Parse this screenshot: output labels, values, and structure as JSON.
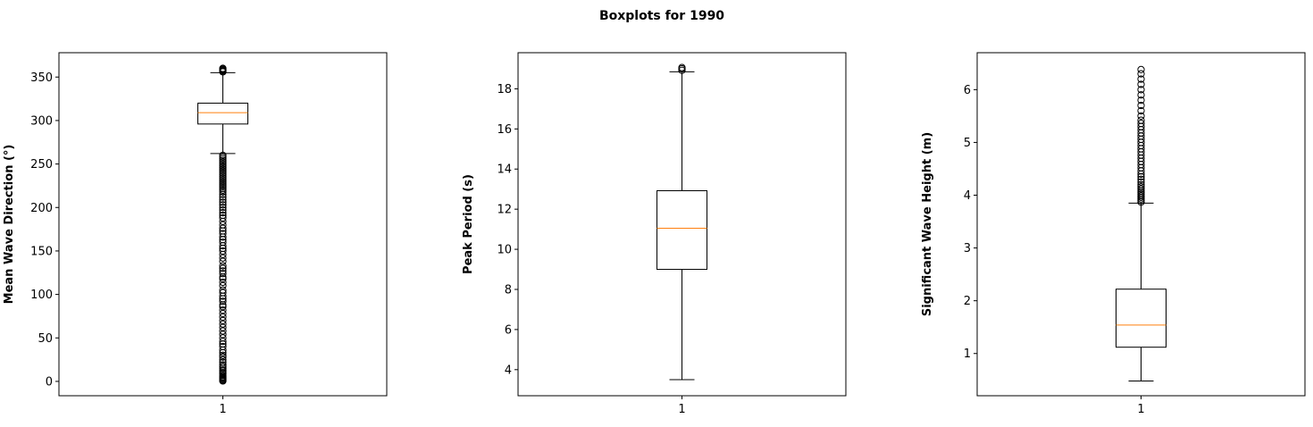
{
  "figure_title": "Boxplots for 1990",
  "colors": {
    "box": "#000000",
    "median": "#ff7f0e",
    "axes": "#000000",
    "background": "#ffffff"
  },
  "chart_data": [
    {
      "type": "boxplot",
      "title": "",
      "xlabel": "",
      "ylabel": "Mean Wave Direction (°)",
      "categories": [
        "1"
      ],
      "ylim": [
        -16.5,
        378
      ],
      "yticks": [
        0,
        50,
        100,
        150,
        200,
        250,
        300,
        350
      ],
      "ytick_labels": [
        "0",
        "50",
        "100",
        "150",
        "200",
        "250",
        "300",
        "350"
      ],
      "grid": false,
      "box": {
        "whisker_low": 262,
        "q1": 296,
        "median": 309,
        "q3": 320,
        "whisker_high": 355
      },
      "outliers": [
        0.5,
        1.5,
        2.5,
        3.5,
        4.5,
        5.5,
        7,
        9,
        10,
        12,
        13,
        15,
        17,
        19,
        22,
        25,
        28,
        30,
        33,
        36,
        40,
        43,
        46,
        50,
        54,
        58,
        62,
        66,
        70,
        74,
        78,
        82,
        86,
        88,
        92,
        95,
        98,
        102,
        105,
        110,
        114,
        118,
        120,
        124,
        127,
        130,
        133,
        138,
        142,
        146,
        150,
        153,
        156,
        160,
        163,
        166,
        170,
        173,
        176,
        180,
        184,
        188,
        191,
        194,
        197,
        200,
        203,
        206,
        209,
        212,
        215,
        218,
        220,
        222,
        224,
        226,
        228,
        230,
        232,
        234,
        236,
        238,
        240,
        242,
        244,
        246,
        248,
        250,
        252,
        254,
        256,
        258,
        260,
        356,
        357,
        358,
        359,
        360
      ]
    },
    {
      "type": "boxplot",
      "title": "",
      "xlabel": "",
      "ylabel": "Peak Period (s)",
      "categories": [
        "1"
      ],
      "ylim": [
        2.7,
        19.8
      ],
      "yticks": [
        4,
        6,
        8,
        10,
        12,
        14,
        16,
        18
      ],
      "ytick_labels": [
        "4",
        "6",
        "8",
        "10",
        "12",
        "14",
        "16",
        "18"
      ],
      "grid": false,
      "box": {
        "whisker_low": 3.5,
        "q1": 9.0,
        "median": 11.05,
        "q3": 12.92,
        "whisker_high": 18.85
      },
      "outliers": [
        18.92,
        19.0,
        19.06
      ]
    },
    {
      "type": "boxplot",
      "title": "",
      "xlabel": "",
      "ylabel": "Significant Wave Height (m)",
      "categories": [
        "1"
      ],
      "ylim": [
        0.2,
        6.7
      ],
      "yticks": [
        1,
        2,
        3,
        4,
        5,
        6
      ],
      "ytick_labels": [
        "1",
        "2",
        "3",
        "4",
        "5",
        "6"
      ],
      "grid": false,
      "box": {
        "whisker_low": 0.48,
        "q1": 1.12,
        "median": 1.54,
        "q3": 2.22,
        "whisker_high": 3.85
      },
      "outliers": [
        3.87,
        3.9,
        3.93,
        3.96,
        3.99,
        4.02,
        4.05,
        4.08,
        4.12,
        4.16,
        4.2,
        4.25,
        4.3,
        4.35,
        4.4,
        4.46,
        4.52,
        4.58,
        4.64,
        4.7,
        4.76,
        4.82,
        4.88,
        4.94,
        5.0,
        5.06,
        5.12,
        5.18,
        5.24,
        5.3,
        5.36,
        5.42,
        5.5,
        5.6,
        5.7,
        5.8,
        5.9,
        6.0,
        6.1,
        6.2,
        6.3,
        6.38
      ]
    }
  ]
}
